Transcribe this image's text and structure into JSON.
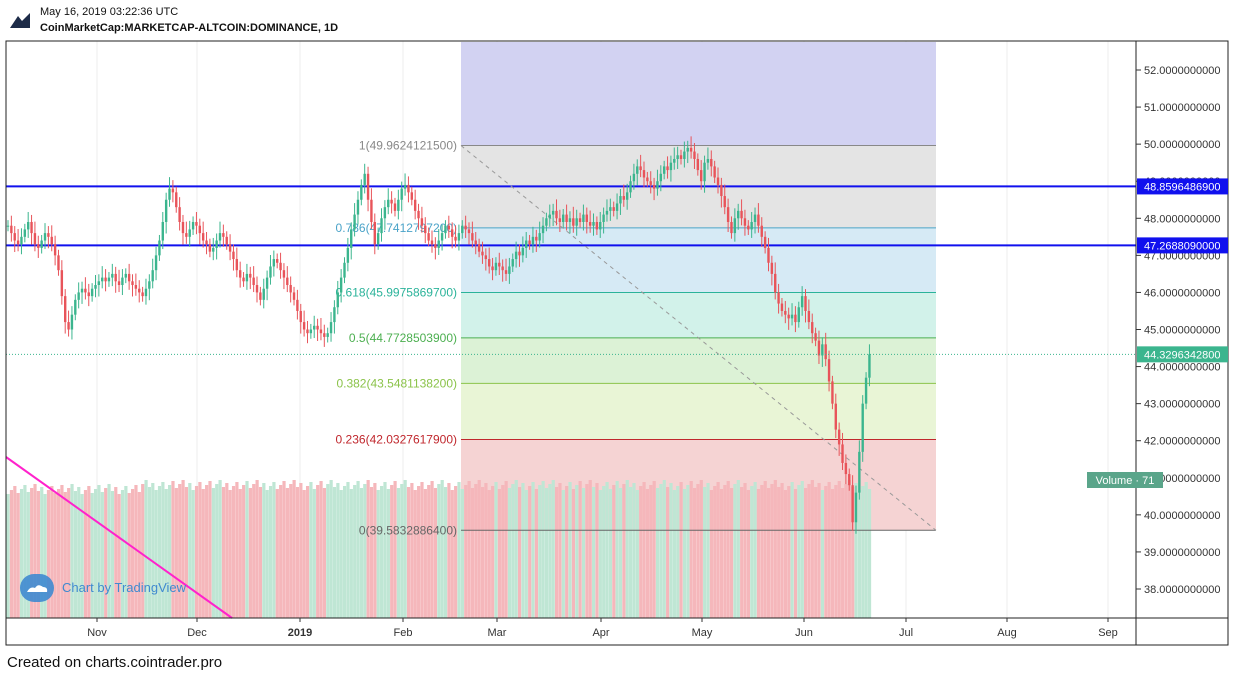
{
  "header": {
    "date": "May 16, 2019 03:22:36 UTC",
    "symbol": "CoinMarketCap:MARKETCAP-ALTCOIN:DOMINANCE, 1D"
  },
  "footer": {
    "credit": "Created on charts.cointrader.pro"
  },
  "watermark": {
    "text": "Chart by TradingView",
    "icon": "tradingview-cloud-icon"
  },
  "colors": {
    "up": "#3bb58e",
    "down": "#e8545a",
    "volume_up": "#bfe6d4",
    "volume_down": "#f5b7bb",
    "hline": "#1010ee",
    "trendline": "#ff22cc",
    "last_price": "#3bb58e"
  },
  "chart_data": {
    "type": "candlestick",
    "x_ticks": [
      "Nov",
      "Dec",
      "2019",
      "Feb",
      "Mar",
      "Apr",
      "May",
      "Jun",
      "Jul",
      "Aug",
      "Sep"
    ],
    "y_ticks": [
      "52.0000000000",
      "51.0000000000",
      "50.0000000000",
      "49.0000000000",
      "48.0000000000",
      "47.0000000000",
      "46.0000000000",
      "45.0000000000",
      "44.0000000000",
      "43.0000000000",
      "42.0000000000",
      "41.0000000000",
      "40.0000000000",
      "39.0000000000",
      "38.0000000000"
    ],
    "ylim": [
      37.6,
      52.3
    ],
    "horizontal_lines": [
      {
        "label": "48.8596486900",
        "value": 48.85964869
      },
      {
        "label": "47.2688090000",
        "value": 47.268809
      }
    ],
    "last_price": {
      "label": "44.3296342800",
      "value": 44.32963428
    },
    "volume_badge": "Volume · 71",
    "fibonacci": [
      {
        "label": "1(49.9624121500)",
        "value": 49.96241215,
        "color": "#888888",
        "fill": "#e4e4e4"
      },
      {
        "label": "0.786(47.7412797200)",
        "value": 47.74127972,
        "color": "#4aa3c8",
        "fill": "#d6eaf5"
      },
      {
        "label": "0.618(45.9975869700)",
        "value": 45.99758697,
        "color": "#2bb39a",
        "fill": "#d2f2ea"
      },
      {
        "label": "0.5(44.7728503900)",
        "value": 44.77285039,
        "color": "#4caf50",
        "fill": "#dcf2d6"
      },
      {
        "label": "0.382(43.5481138200)",
        "value": 43.54811382,
        "color": "#8bc34a",
        "fill": "#e9f5d6"
      },
      {
        "label": "0.236(42.0327617900)",
        "value": 42.03276179,
        "color": "#c0272d",
        "fill": "#f5d3d3"
      },
      {
        "label": "0(39.5832886400)",
        "value": 39.58328864,
        "color": "#666666",
        "fill": "#f5d3d3"
      }
    ],
    "fib_extension_fill": "#d2d2f2",
    "closes": [
      47.8,
      47.6,
      47.4,
      47.3,
      47.5,
      47.7,
      47.9,
      47.6,
      47.3,
      47.2,
      47.4,
      47.6,
      47.5,
      47.3,
      47.0,
      46.6,
      45.9,
      45.2,
      45.0,
      45.4,
      45.8,
      46.0,
      46.1,
      46.0,
      45.9,
      46.1,
      46.2,
      46.3,
      46.4,
      46.3,
      46.4,
      46.5,
      46.3,
      46.2,
      46.4,
      46.5,
      46.3,
      46.2,
      46.1,
      46.0,
      45.9,
      46.1,
      46.3,
      46.6,
      47.0,
      47.4,
      47.9,
      48.5,
      48.8,
      48.7,
      48.3,
      47.9,
      47.6,
      47.5,
      47.7,
      47.9,
      47.8,
      47.6,
      47.4,
      47.3,
      47.1,
      47.2,
      47.4,
      47.6,
      47.5,
      47.3,
      47.1,
      46.9,
      46.6,
      46.4,
      46.3,
      46.5,
      46.4,
      46.2,
      46.0,
      45.8,
      46.1,
      46.4,
      46.7,
      46.9,
      46.8,
      46.6,
      46.4,
      46.2,
      46.0,
      45.8,
      45.5,
      45.2,
      45.0,
      44.9,
      45.0,
      45.1,
      45.0,
      44.9,
      44.8,
      44.9,
      45.2,
      45.6,
      46.0,
      46.4,
      46.8,
      47.2,
      47.7,
      48.1,
      48.5,
      48.9,
      49.2,
      48.5,
      47.9,
      47.3,
      47.6,
      48.0,
      48.3,
      48.5,
      48.4,
      48.2,
      48.5,
      48.8,
      48.9,
      48.7,
      48.5,
      48.2,
      48.0,
      47.8,
      47.6,
      47.4,
      47.3,
      47.2,
      47.4,
      47.6,
      47.8,
      47.7,
      47.5,
      47.4,
      47.6,
      47.8,
      47.7,
      47.6,
      47.4,
      47.3,
      47.1,
      47.0,
      46.9,
      46.7,
      46.6,
      46.8,
      46.7,
      46.6,
      46.5,
      46.7,
      46.9,
      47.1,
      47.0,
      47.2,
      47.4,
      47.3,
      47.5,
      47.4,
      47.6,
      47.8,
      48.0,
      48.1,
      48.2,
      48.0,
      47.9,
      48.1,
      47.9,
      48.0,
      47.8,
      48.0,
      47.9,
      48.1,
      47.9,
      47.8,
      47.9,
      47.7,
      47.9,
      48.1,
      48.2,
      48.3,
      48.2,
      48.4,
      48.6,
      48.5,
      48.7,
      49.0,
      49.2,
      49.4,
      49.3,
      49.1,
      49.0,
      48.9,
      48.8,
      49.0,
      49.2,
      49.4,
      49.3,
      49.5,
      49.6,
      49.7,
      49.6,
      49.8,
      49.9,
      49.8,
      49.6,
      49.3,
      49.0,
      49.5,
      49.6,
      49.4,
      49.1,
      48.9,
      48.6,
      48.3,
      47.9,
      47.6,
      48.0,
      48.2,
      48.0,
      47.8,
      47.7,
      47.9,
      48.1,
      47.8,
      47.5,
      47.2,
      46.8,
      46.5,
      46.0,
      45.7,
      45.5,
      45.4,
      45.3,
      45.4,
      45.2,
      45.6,
      45.9,
      45.5,
      45.2,
      44.9,
      44.7,
      44.3,
      44.6,
      44.2,
      43.6,
      43.0,
      42.3,
      41.9,
      41.4,
      41.1,
      40.8,
      39.8,
      40.6,
      41.7,
      43.0,
      43.7,
      44.33
    ],
    "fib_anchor_index": 207
  }
}
